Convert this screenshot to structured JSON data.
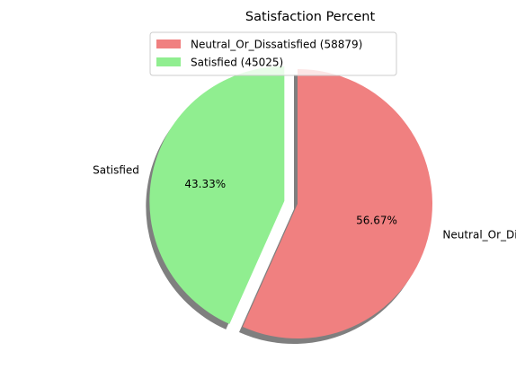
{
  "chart_data": {
    "type": "pie",
    "title": "Satisfaction Percent",
    "categories": [
      "Neutral_Or_Dissatisfied",
      "Satisfied"
    ],
    "values": [
      58879,
      45025
    ],
    "percent_labels": [
      "56.67%",
      "43.33%"
    ],
    "legend_labels": [
      "Neutral_Or_Dissatisfied (58879)",
      "Satisfied (45025)"
    ],
    "colors": [
      "#f08080",
      "#90ee90"
    ],
    "legend_position": "upper center",
    "start_angle_deg": 90,
    "direction": "clockwise",
    "exploded": [
      false,
      true
    ],
    "shadow": true
  }
}
